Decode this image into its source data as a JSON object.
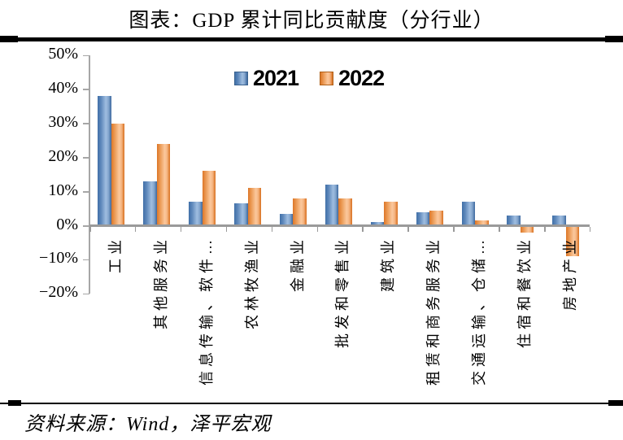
{
  "header": {
    "title": "图表：GDP 累计同比贡献度（分行业）"
  },
  "footer": {
    "source": "资料来源：Wind，泽平宏观"
  },
  "colors": {
    "bar_2021": "#4f81bd",
    "bar_2022": "#f79646",
    "axis": "#a6a6a6",
    "baseline": "#9a9a9a",
    "rule": "#000000"
  },
  "chart_data": {
    "type": "bar",
    "title": "图表：GDP 累计同比贡献度（分行业）",
    "categories": [
      "工业",
      "其他服务业",
      "信息传输、软件…",
      "农林牧渔业",
      "金融业",
      "批发和零售业",
      "建筑业",
      "租赁和商务服务业",
      "交通运输、仓储…",
      "住宿和餐饮业",
      "房地产业"
    ],
    "series": [
      {
        "name": "2021",
        "color": "#4f81bd",
        "values": [
          38,
          13,
          7,
          6.5,
          3.5,
          12,
          1,
          4,
          7,
          3,
          3
        ]
      },
      {
        "name": "2022",
        "color": "#f79646",
        "values": [
          30,
          24,
          16,
          11,
          8,
          8,
          7,
          4.5,
          1.5,
          -2,
          -9
        ]
      }
    ],
    "xlabel": "",
    "ylabel": "",
    "ylim": [
      -20,
      50
    ],
    "grid": false,
    "legend_position": "top-center",
    "y_ticks": [
      {
        "value": 50,
        "label": "50%"
      },
      {
        "value": 40,
        "label": "40%"
      },
      {
        "value": 30,
        "label": "30%"
      },
      {
        "value": 20,
        "label": "20%"
      },
      {
        "value": 10,
        "label": "10%"
      },
      {
        "value": 0,
        "label": "0%"
      },
      {
        "value": -10,
        "label": "−10%"
      },
      {
        "value": -20,
        "label": "−20%"
      }
    ]
  }
}
